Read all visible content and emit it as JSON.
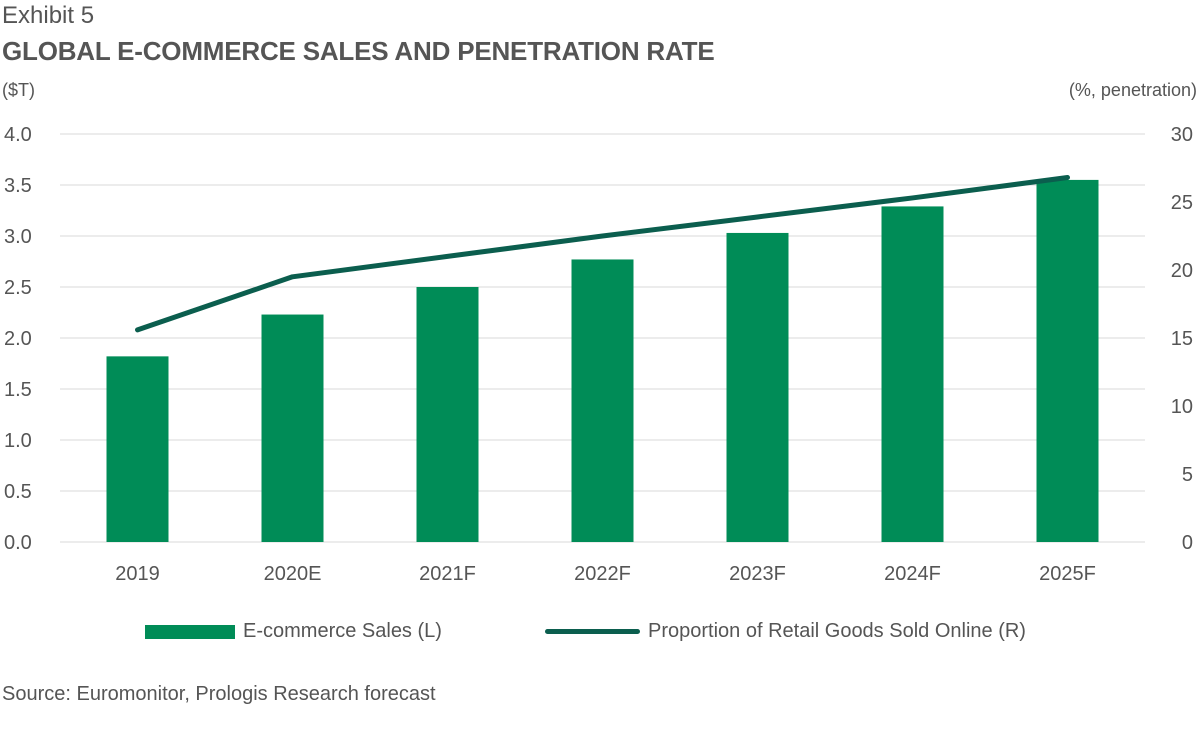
{
  "header": {
    "exhibit": "Exhibit 5",
    "title": "GLOBAL E-COMMERCE SALES AND PENETRATION RATE",
    "left_unit": "($T)",
    "right_unit": "(%, penetration)"
  },
  "colors": {
    "bar": "#008C57",
    "line": "#0B5E4E",
    "grid": "#D9D9D9",
    "text": "#555555"
  },
  "chart_data": {
    "type": "bar",
    "categories": [
      "2019",
      "2020E",
      "2021F",
      "2022F",
      "2023F",
      "2024F",
      "2025F"
    ],
    "series": [
      {
        "name": "E-commerce Sales (L)",
        "type": "bar",
        "axis": "left",
        "values": [
          1.82,
          2.23,
          2.5,
          2.77,
          3.03,
          3.29,
          3.55
        ]
      },
      {
        "name": "Proportion of Retail Goods Sold Online (R)",
        "type": "line",
        "axis": "right",
        "values": [
          15.6,
          19.5,
          21.0,
          22.5,
          23.9,
          25.3,
          26.8
        ]
      }
    ],
    "y_left": {
      "lim": [
        0,
        4.0
      ],
      "ticks": [
        "0.0",
        "0.5",
        "1.0",
        "1.5",
        "2.0",
        "2.5",
        "3.0",
        "3.5",
        "4.0"
      ]
    },
    "y_right": {
      "lim": [
        0,
        30
      ],
      "ticks": [
        "0",
        "5",
        "10",
        "15",
        "20",
        "25",
        "30"
      ]
    },
    "grid": true,
    "legend": "bottom"
  },
  "footer": {
    "source": "Source: Euromonitor, Prologis Research forecast"
  }
}
